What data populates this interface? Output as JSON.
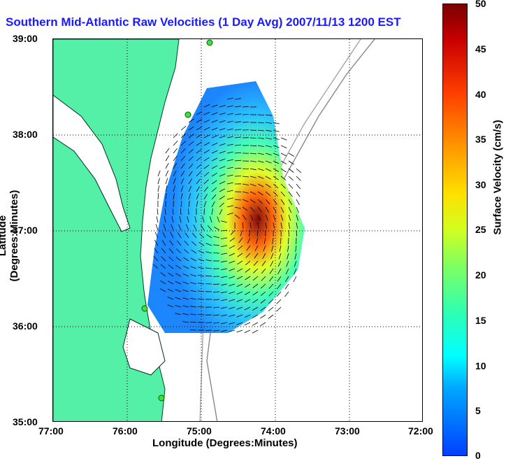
{
  "title": "Southern Mid-Atlantic Raw Velocities (1 Day Avg) 2007/11/13 1200 EST",
  "map": {
    "xlabel": "Longitude (Degrees:Minutes)",
    "ylabel": "Latitude (Degrees:Minutes)",
    "x_ticks": [
      "77:00",
      "76:00",
      "75:00",
      "74:00",
      "73:00",
      "72:00"
    ],
    "y_ticks": [
      "39:00",
      "38:00",
      "37:00",
      "36:00",
      "35:00"
    ],
    "land_color": "#55f0a8",
    "grid": "dotted"
  },
  "colorbar": {
    "label": "Surface Velocity (cm/s)",
    "ticks": [
      "50",
      "45",
      "40",
      "35",
      "30",
      "25",
      "20",
      "15",
      "10",
      "5",
      "0"
    ],
    "range": [
      0,
      50
    ]
  }
}
